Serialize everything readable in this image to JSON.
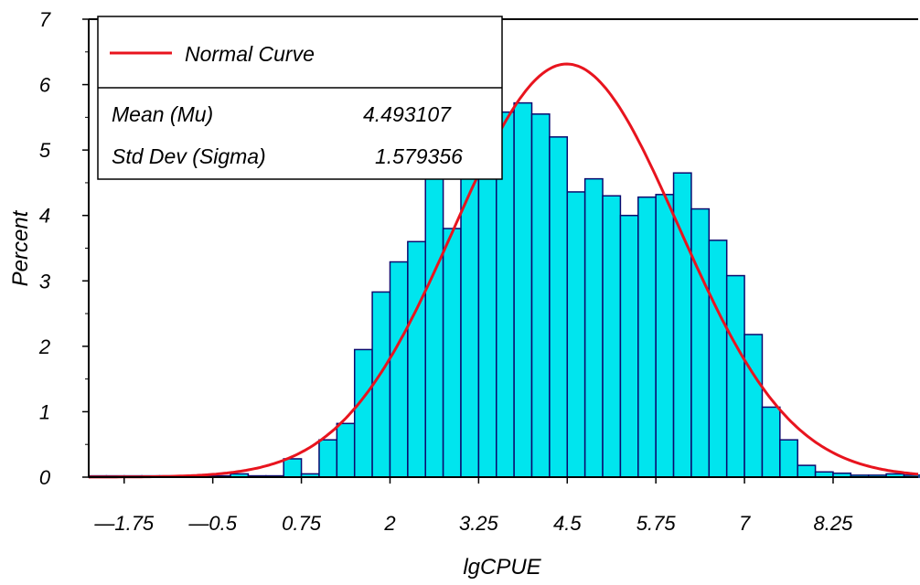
{
  "chart_data": {
    "type": "bar",
    "xlabel": "lgCPUE",
    "ylabel": "Percent",
    "xlim": [
      -2.25,
      9.45
    ],
    "ylim": [
      0,
      7
    ],
    "bin_width": 0.25,
    "bars": [
      {
        "x": -2.125,
        "y": 0.02
      },
      {
        "x": -1.875,
        "y": 0.02
      },
      {
        "x": -1.625,
        "y": 0.02
      },
      {
        "x": -1.375,
        "y": 0.02
      },
      {
        "x": -1.125,
        "y": 0.02
      },
      {
        "x": -0.875,
        "y": 0.02
      },
      {
        "x": -0.625,
        "y": 0.02
      },
      {
        "x": -0.375,
        "y": 0.02
      },
      {
        "x": -0.125,
        "y": 0.05
      },
      {
        "x": 0.125,
        "y": 0.02
      },
      {
        "x": 0.375,
        "y": 0.02
      },
      {
        "x": 0.625,
        "y": 0.28
      },
      {
        "x": 0.875,
        "y": 0.05
      },
      {
        "x": 1.125,
        "y": 0.57
      },
      {
        "x": 1.375,
        "y": 0.82
      },
      {
        "x": 1.625,
        "y": 1.95
      },
      {
        "x": 1.875,
        "y": 2.83
      },
      {
        "x": 2.125,
        "y": 3.29
      },
      {
        "x": 2.375,
        "y": 3.6
      },
      {
        "x": 2.625,
        "y": 4.58
      },
      {
        "x": 2.875,
        "y": 3.8
      },
      {
        "x": 3.125,
        "y": 5.62
      },
      {
        "x": 3.375,
        "y": 5.65
      },
      {
        "x": 3.625,
        "y": 5.58
      },
      {
        "x": 3.875,
        "y": 5.72
      },
      {
        "x": 4.125,
        "y": 5.55
      },
      {
        "x": 4.375,
        "y": 5.2
      },
      {
        "x": 4.625,
        "y": 4.36
      },
      {
        "x": 4.875,
        "y": 4.56
      },
      {
        "x": 5.125,
        "y": 4.3
      },
      {
        "x": 5.375,
        "y": 4.0
      },
      {
        "x": 5.625,
        "y": 4.28
      },
      {
        "x": 5.875,
        "y": 4.32
      },
      {
        "x": 6.125,
        "y": 4.65
      },
      {
        "x": 6.375,
        "y": 4.1
      },
      {
        "x": 6.625,
        "y": 3.62
      },
      {
        "x": 6.875,
        "y": 3.08
      },
      {
        "x": 7.125,
        "y": 2.18
      },
      {
        "x": 7.375,
        "y": 1.07
      },
      {
        "x": 7.625,
        "y": 0.57
      },
      {
        "x": 7.875,
        "y": 0.18
      },
      {
        "x": 8.125,
        "y": 0.08
      },
      {
        "x": 8.375,
        "y": 0.06
      },
      {
        "x": 8.625,
        "y": 0.03
      },
      {
        "x": 8.875,
        "y": 0.03
      },
      {
        "x": 9.125,
        "y": 0.05
      },
      {
        "x": 9.375,
        "y": 0.03
      }
    ],
    "x_ticks": [
      {
        "value": -1.75,
        "label": "—1.75"
      },
      {
        "value": -0.5,
        "label": "—0.5"
      },
      {
        "value": 0.75,
        "label": "0.75"
      },
      {
        "value": 2,
        "label": "2"
      },
      {
        "value": 3.25,
        "label": "3.25"
      },
      {
        "value": 4.5,
        "label": "4.5"
      },
      {
        "value": 5.75,
        "label": "5.75"
      },
      {
        "value": 7,
        "label": "7"
      },
      {
        "value": 8.25,
        "label": "8.25"
      }
    ],
    "y_ticks": [
      {
        "value": 0,
        "label": "0"
      },
      {
        "value": 1,
        "label": "1"
      },
      {
        "value": 2,
        "label": "2"
      },
      {
        "value": 3,
        "label": "3"
      },
      {
        "value": 4,
        "label": "4"
      },
      {
        "value": 5,
        "label": "5"
      },
      {
        "value": 6,
        "label": "6"
      },
      {
        "value": 7,
        "label": "7"
      }
    ],
    "normal_curve": {
      "mean": 4.493107,
      "sd": 1.579356,
      "scale": 25,
      "color": "#e8141e"
    },
    "legend": {
      "curve_label": "Normal Curve",
      "rows": [
        {
          "label": "Mean (Mu)",
          "value": "4.493107"
        },
        {
          "label": "Std Dev (Sigma)",
          "value": "1.579356"
        }
      ],
      "placement": "top-left"
    },
    "colors": {
      "bar_fill": "#00e5ee",
      "bar_edge": "#0a0a6e",
      "axis": "#000000"
    },
    "grid": false
  }
}
